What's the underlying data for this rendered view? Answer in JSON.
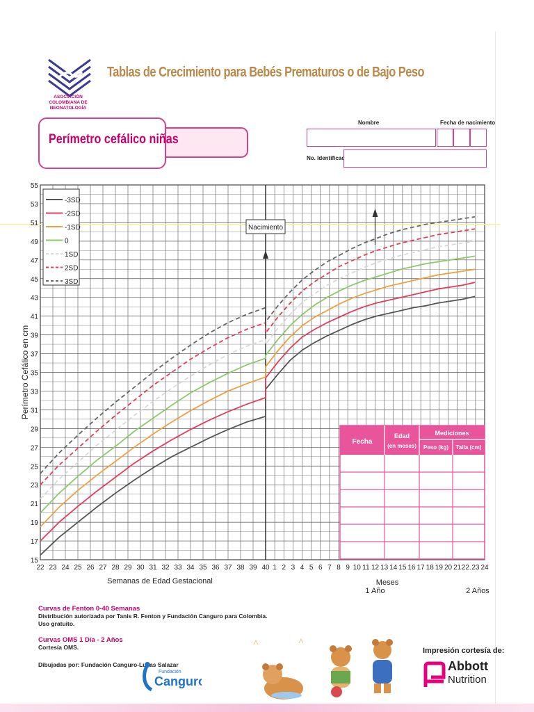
{
  "header": {
    "logo_org_text": "ASOCIACIÓN COLOMBIANA DE NEONATOLOGÍA",
    "main_title": "Tablas de Crecimiento para Bebés Prematuros o de Bajo Peso",
    "chart_title": "Perímetro cefálico niñas"
  },
  "form": {
    "name_label": "Nombre",
    "birthdate_label": "Fecha de nacimiento",
    "id_label": "No. Identificación"
  },
  "colors": {
    "accent_pink": "#d6418e",
    "title_gold": "#b9894a",
    "table_pink": "#e9559b"
  },
  "chart_data": {
    "type": "line",
    "ylabel": "Perímetro Cefálico en cm",
    "xlabel_left": "Semanas de Edad Gestacional",
    "xlabel_right": "Meses",
    "x_mark_1": "1 Año",
    "x_mark_2": "2 Años",
    "birth_label": "Nacimiento",
    "ylim": [
      15,
      55
    ],
    "yticks": [
      15,
      17,
      19,
      21,
      23,
      25,
      27,
      29,
      31,
      33,
      35,
      37,
      39,
      41,
      43,
      45,
      47,
      49,
      51,
      53,
      55
    ],
    "xtick_labels_weeks": [
      "22",
      "23",
      "24",
      "25",
      "26",
      "27",
      "28",
      "29",
      "30",
      "31",
      "32",
      "33",
      "34",
      "35",
      "36",
      "37",
      "38",
      "39",
      "40"
    ],
    "xtick_labels_months": [
      "1",
      "2",
      "3",
      "4",
      "5",
      "6",
      "7",
      "8",
      "9",
      "10",
      "11",
      "12",
      "13",
      "14",
      "15",
      "16",
      "17",
      "18",
      "19",
      "20",
      "21",
      "22.",
      "23",
      "24"
    ],
    "legend_position": "top-left",
    "grid": true,
    "series": [
      {
        "name": "-3SD",
        "color": "#555555",
        "dash": false,
        "weeks": [
          15.5,
          17.4,
          19.0,
          20.6,
          22.1,
          23.5,
          24.8,
          26.0,
          27.0,
          28.0,
          28.9,
          29.7,
          30.3
        ],
        "months": [
          33.2,
          34.8,
          36.3,
          37.4,
          38.2,
          38.9,
          39.5,
          40.1,
          40.6,
          41.0,
          41.3,
          41.6,
          41.9,
          42.1,
          42.4,
          42.6,
          42.8,
          43.1
        ]
      },
      {
        "name": "-2SD",
        "color": "#e63c5c",
        "dash": false,
        "weeks": [
          17.0,
          19.0,
          20.7,
          22.3,
          23.8,
          25.3,
          26.6,
          27.8,
          28.9,
          29.9,
          30.8,
          31.6,
          32.3
        ],
        "months": [
          34.4,
          36.1,
          37.6,
          38.8,
          39.6,
          40.3,
          40.9,
          41.5,
          42.0,
          42.4,
          42.7,
          43.0,
          43.3,
          43.6,
          43.9,
          44.1,
          44.3,
          44.6
        ]
      },
      {
        "name": "-1SD",
        "color": "#f0a040",
        "dash": false,
        "weeks": [
          18.5,
          20.6,
          22.4,
          24.0,
          25.5,
          27.0,
          28.4,
          29.7,
          30.9,
          32.0,
          33.0,
          33.8,
          34.5
        ],
        "months": [
          35.6,
          37.3,
          38.8,
          40.0,
          40.9,
          41.6,
          42.3,
          42.9,
          43.4,
          43.8,
          44.2,
          44.5,
          44.8,
          45.1,
          45.4,
          45.6,
          45.8,
          46.0
        ]
      },
      {
        "name": "0",
        "color": "#8dc86a",
        "dash": false,
        "weeks": [
          20.0,
          22.1,
          23.9,
          25.6,
          27.1,
          28.7,
          30.1,
          31.5,
          32.8,
          33.9,
          34.9,
          35.8,
          36.5
        ],
        "months": [
          36.8,
          38.5,
          40.0,
          41.2,
          42.2,
          43.0,
          43.7,
          44.3,
          44.8,
          45.2,
          45.6,
          46.0,
          46.3,
          46.6,
          46.8,
          47.0,
          47.2,
          47.4
        ]
      },
      {
        "name": "1SD",
        "color": "#d8d8d8",
        "dash": true,
        "weeks": [
          21.5,
          23.6,
          25.4,
          27.2,
          28.8,
          30.4,
          31.9,
          33.3,
          34.6,
          35.8,
          36.9,
          37.8,
          38.5
        ],
        "months": [
          38.0,
          39.7,
          41.2,
          42.5,
          43.4,
          44.3,
          45.0,
          45.6,
          46.2,
          46.7,
          47.1,
          47.5,
          47.8,
          48.1,
          48.4,
          48.6,
          48.8,
          49.0
        ]
      },
      {
        "name": "2SD",
        "color": "#e63c5c",
        "dash": true,
        "weeks": [
          23.0,
          25.1,
          26.9,
          28.7,
          30.4,
          32.0,
          33.6,
          35.0,
          36.4,
          37.6,
          38.7,
          39.6,
          40.3
        ],
        "months": [
          39.2,
          40.9,
          42.4,
          43.7,
          44.7,
          45.5,
          46.3,
          46.9,
          47.5,
          48.0,
          48.4,
          48.8,
          49.1,
          49.4,
          49.7,
          49.9,
          50.1,
          50.3
        ]
      },
      {
        "name": "3SD",
        "color": "#666666",
        "dash": true,
        "weeks": [
          24.2,
          26.4,
          28.3,
          30.1,
          31.8,
          33.4,
          35.0,
          36.5,
          37.9,
          39.2,
          40.3,
          41.2,
          41.9
        ],
        "months": [
          40.4,
          42.1,
          43.6,
          44.9,
          45.9,
          46.8,
          47.5,
          48.2,
          48.8,
          49.3,
          49.8,
          50.2,
          50.5,
          50.8,
          51.0,
          51.2,
          51.4,
          51.6
        ]
      }
    ]
  },
  "table": {
    "headers": {
      "fecha": "Fecha",
      "edad": "Edad",
      "edad_sub": "(en meses)",
      "mediciones": "Mediciones",
      "peso": "Peso (kg)",
      "talla": "Talla (cm)"
    }
  },
  "footer": {
    "fenton_title": "Curvas de Fenton 0-40 Semanas",
    "fenton_line1": "Distribución autorizada por Tanis R. Fenton y Fundación Canguro para Colombia.",
    "fenton_line2": "Uso gratuito.",
    "oms_title": "Curvas OMS 1 Día - 2 Años",
    "oms_line1": "Cortesía OMS.",
    "drawn_by": "Dibujadas por: Fundación Canguro-Lukas Salazar",
    "kangaroo_small": "Fundación",
    "kangaroo_big": "Canguro",
    "courtesy": "Impresión cortesía de:",
    "abbott_1": "Abbott",
    "abbott_2": "Nutrition"
  }
}
